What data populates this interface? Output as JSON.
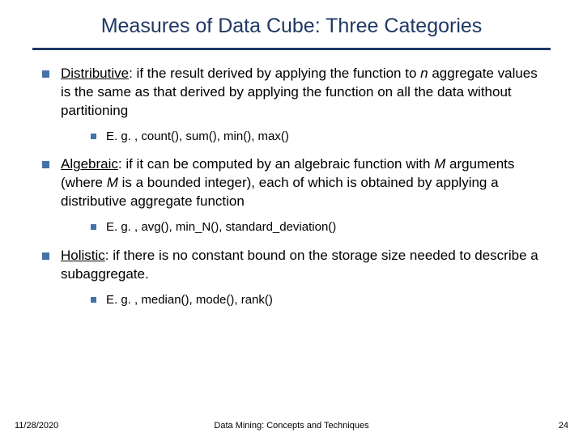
{
  "title": "Measures of Data Cube: Three Categories",
  "colors": {
    "title": "#1f3864",
    "rule": "#1f3864",
    "bullet": "#4472a8",
    "text": "#000000",
    "background": "#ffffff"
  },
  "typography": {
    "title_fontsize": 25,
    "body_fontsize": 17,
    "sub_fontsize": 15,
    "footer_fontsize": 11,
    "font_family": "Verdana"
  },
  "bullets": [
    {
      "term": "Distributive",
      "rest_pre": ": if the result derived by applying the function to ",
      "ital": "n",
      "rest_post": " aggregate values is the same as that derived by applying the function on all the data without partitioning",
      "sub": "E. g. , count(), sum(), min(), max()"
    },
    {
      "term": "Algebraic",
      "rest_pre": ": if it can be computed by an algebraic function with ",
      "ital": "M",
      "rest_mid": " arguments (where ",
      "ital2": "M",
      "rest_post": " is a bounded integer), each of which is obtained by applying a distributive aggregate function",
      "sub": "E. g. ,  avg(), min_N(), standard_deviation()"
    },
    {
      "term": "Holistic",
      "rest_pre": ": if there is no constant bound on the storage size needed to describe a subaggregate.",
      "sub": "E. g. , median(), mode(), rank()"
    }
  ],
  "footer": {
    "date": "11/28/2020",
    "center": "Data Mining: Concepts and Techniques",
    "page": "24"
  }
}
